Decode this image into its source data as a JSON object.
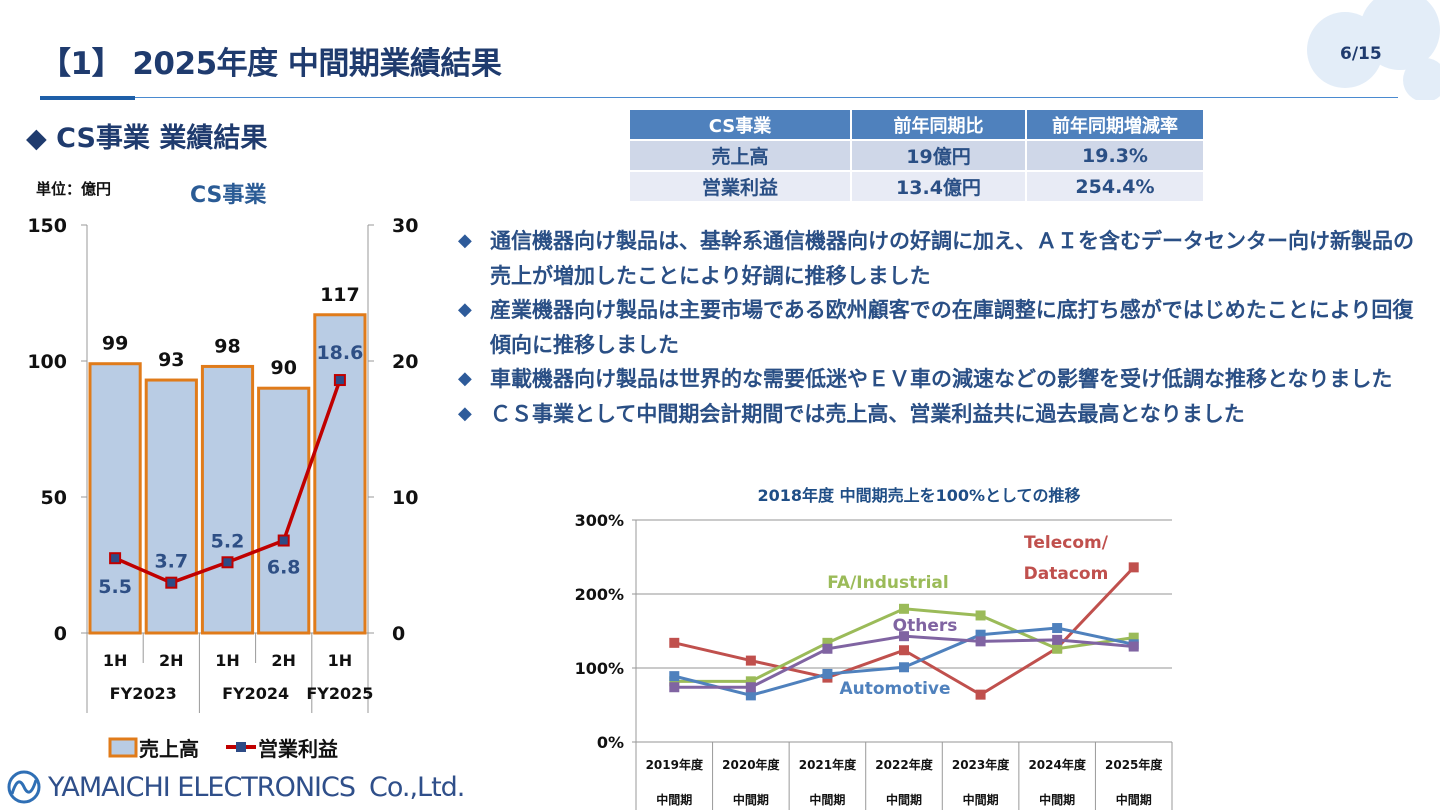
{
  "header": {
    "title": "【1】 2025年度 中間期業績結果",
    "page": "6/15"
  },
  "section": {
    "title": "◆ CS事業 業績結果",
    "unit": "単位：億円",
    "chart_title": "CS事業"
  },
  "table": {
    "headers": [
      "CS事業",
      "前年同期比",
      "前年同期増減率"
    ],
    "rows": [
      [
        "売上高",
        "19億円",
        "19.3%"
      ],
      [
        "営業利益",
        "13.4億円",
        "254.4%"
      ]
    ]
  },
  "bullets": [
    "通信機器向け製品は、基幹系通信機器向けの好調に加え、ＡＩを含むデータセンター向け新製品の売上が増加したことにより好調に推移しました",
    "産業機器向け製品は主要市場である欧州顧客での在庫調整に底打ち感がではじめたことにより回復傾向に推移しました",
    "車載機器向け製品は世界的な需要低迷やＥＶ車の減速などの影響を受け低調な推移となりました",
    "ＣＳ事業として中間期会計期間では売上高、営業利益共に過去最高となりました"
  ],
  "bullet_icon": "diamond-icon",
  "logo": {
    "text": "YAMAICHI ELECTRONICS",
    "suffix": "Co.,Ltd."
  },
  "chart_data": [
    {
      "type": "bar",
      "title": "CS事業",
      "categories": [
        "1H",
        "2H",
        "1H",
        "2H",
        "1H"
      ],
      "groups": [
        "FY2023",
        "FY2024",
        "FY2025"
      ],
      "series": [
        {
          "name": "売上高",
          "type": "bar",
          "axis": "left",
          "values": [
            99,
            93,
            98,
            90,
            117
          ],
          "color": "#b9cce4",
          "edge": "#e07b1a"
        },
        {
          "name": "営業利益",
          "type": "line",
          "axis": "right",
          "values": [
            5.5,
            3.7,
            5.2,
            6.8,
            18.6
          ],
          "color": "#c00000"
        }
      ],
      "ylim_left": [
        0,
        150
      ],
      "yticks_left": [
        "0",
        "50",
        "100",
        "150"
      ],
      "ylim_right": [
        0,
        30
      ],
      "yticks_right": [
        "0",
        "10",
        "20",
        "30"
      ],
      "legend": "bottom"
    },
    {
      "type": "line",
      "title": "2018年度 中間期売上を100%としての推移",
      "categories": [
        [
          "2019年度",
          "中間期"
        ],
        [
          "2020年度",
          "中間期"
        ],
        [
          "2021年度",
          "中間期"
        ],
        [
          "2022年度",
          "中間期"
        ],
        [
          "2023年度",
          "中間期"
        ],
        [
          "2024年度",
          "中間期"
        ],
        [
          "2025年度",
          "中間期"
        ]
      ],
      "ylim": [
        0,
        300
      ],
      "yticks": [
        "0%",
        "100%",
        "200%",
        "300%"
      ],
      "grid": true,
      "series": [
        {
          "name": "Telecom/ Datacom",
          "color": "#c0504d",
          "values": [
            134,
            110,
            87,
            124,
            64,
            127,
            236
          ]
        },
        {
          "name": "FA/Industrial",
          "color": "#9bbb59",
          "values": [
            82,
            82,
            134,
            180,
            171,
            126,
            141
          ]
        },
        {
          "name": "Automotive",
          "color": "#4f81bd",
          "values": [
            89,
            63,
            92,
            101,
            145,
            154,
            132
          ]
        },
        {
          "name": "Others",
          "color": "#8064a2",
          "values": [
            74,
            74,
            126,
            143,
            136,
            138,
            129
          ]
        }
      ]
    }
  ]
}
